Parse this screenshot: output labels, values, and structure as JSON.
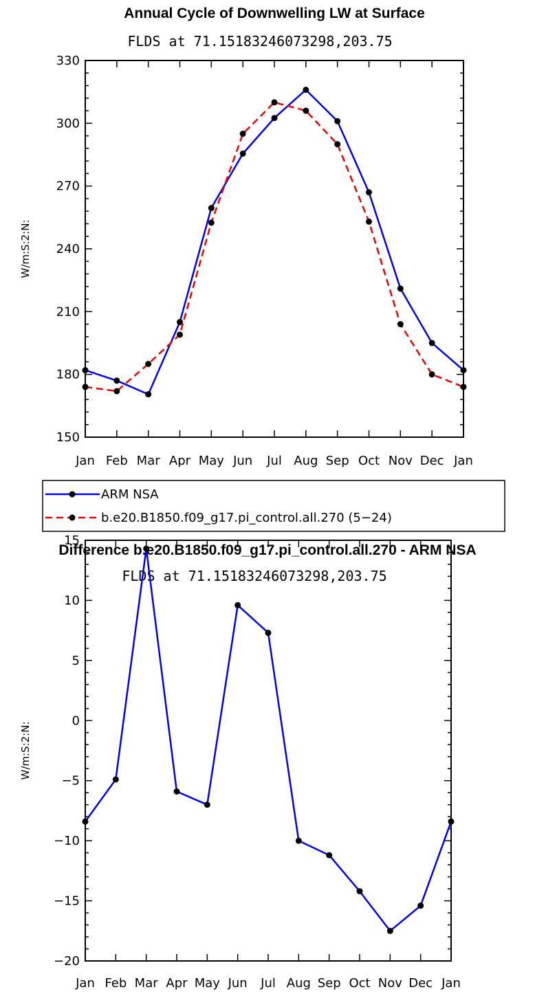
{
  "chart_data": [
    {
      "type": "line",
      "title": "Annual Cycle of Downwelling LW at Surface",
      "subtitle": "FLDS at 71.15183246073298,203.75",
      "ylabel": "W/m:S:2:N:",
      "xlabel": "",
      "categories": [
        "Jan",
        "Feb",
        "Mar",
        "Apr",
        "May",
        "Jun",
        "Jul",
        "Aug",
        "Sep",
        "Oct",
        "Nov",
        "Dec",
        "Jan"
      ],
      "ylim": [
        150,
        330
      ],
      "yticks": [
        150,
        180,
        210,
        240,
        270,
        300,
        330
      ],
      "grid": false,
      "legend": "below",
      "series": [
        {
          "name": "ARM NSA",
          "color": "#0000ee",
          "dash": "solid",
          "values": [
            182,
            177,
            170.5,
            205,
            259.5,
            285.5,
            302.5,
            316,
            301,
            267,
            221,
            195,
            182
          ]
        },
        {
          "name": "b.e20.B1850.f09_g17.pi_control.all.270 (5−24)",
          "color": "#ee0000",
          "dash": "dashed",
          "values": [
            174,
            172,
            185,
            199,
            252.5,
            295,
            310,
            306,
            290,
            253,
            204,
            180,
            174
          ]
        }
      ]
    },
    {
      "type": "line",
      "title": "Difference b.e20.B1850.f09_g17.pi_control.all.270 - ARM NSA",
      "subtitle": "FLDS at 71.15183246073298,203.75",
      "ylabel": "W/m:S:2:N:",
      "xlabel": "",
      "categories": [
        "Jan",
        "Feb",
        "Mar",
        "Apr",
        "May",
        "Jun",
        "Jul",
        "Aug",
        "Sep",
        "Oct",
        "Nov",
        "Dec",
        "Jan"
      ],
      "ylim": [
        -20,
        15
      ],
      "yticks": [
        -20,
        -15,
        -10,
        -5,
        0,
        5,
        10,
        15
      ],
      "grid": false,
      "series": [
        {
          "name": "",
          "color": "#0000ee",
          "dash": "solid",
          "values": [
            -8.4,
            -4.9,
            14.3,
            -5.9,
            -7.0,
            9.6,
            7.3,
            -10.0,
            -11.2,
            -14.2,
            -17.5,
            -15.4,
            -8.4
          ]
        }
      ]
    }
  ]
}
